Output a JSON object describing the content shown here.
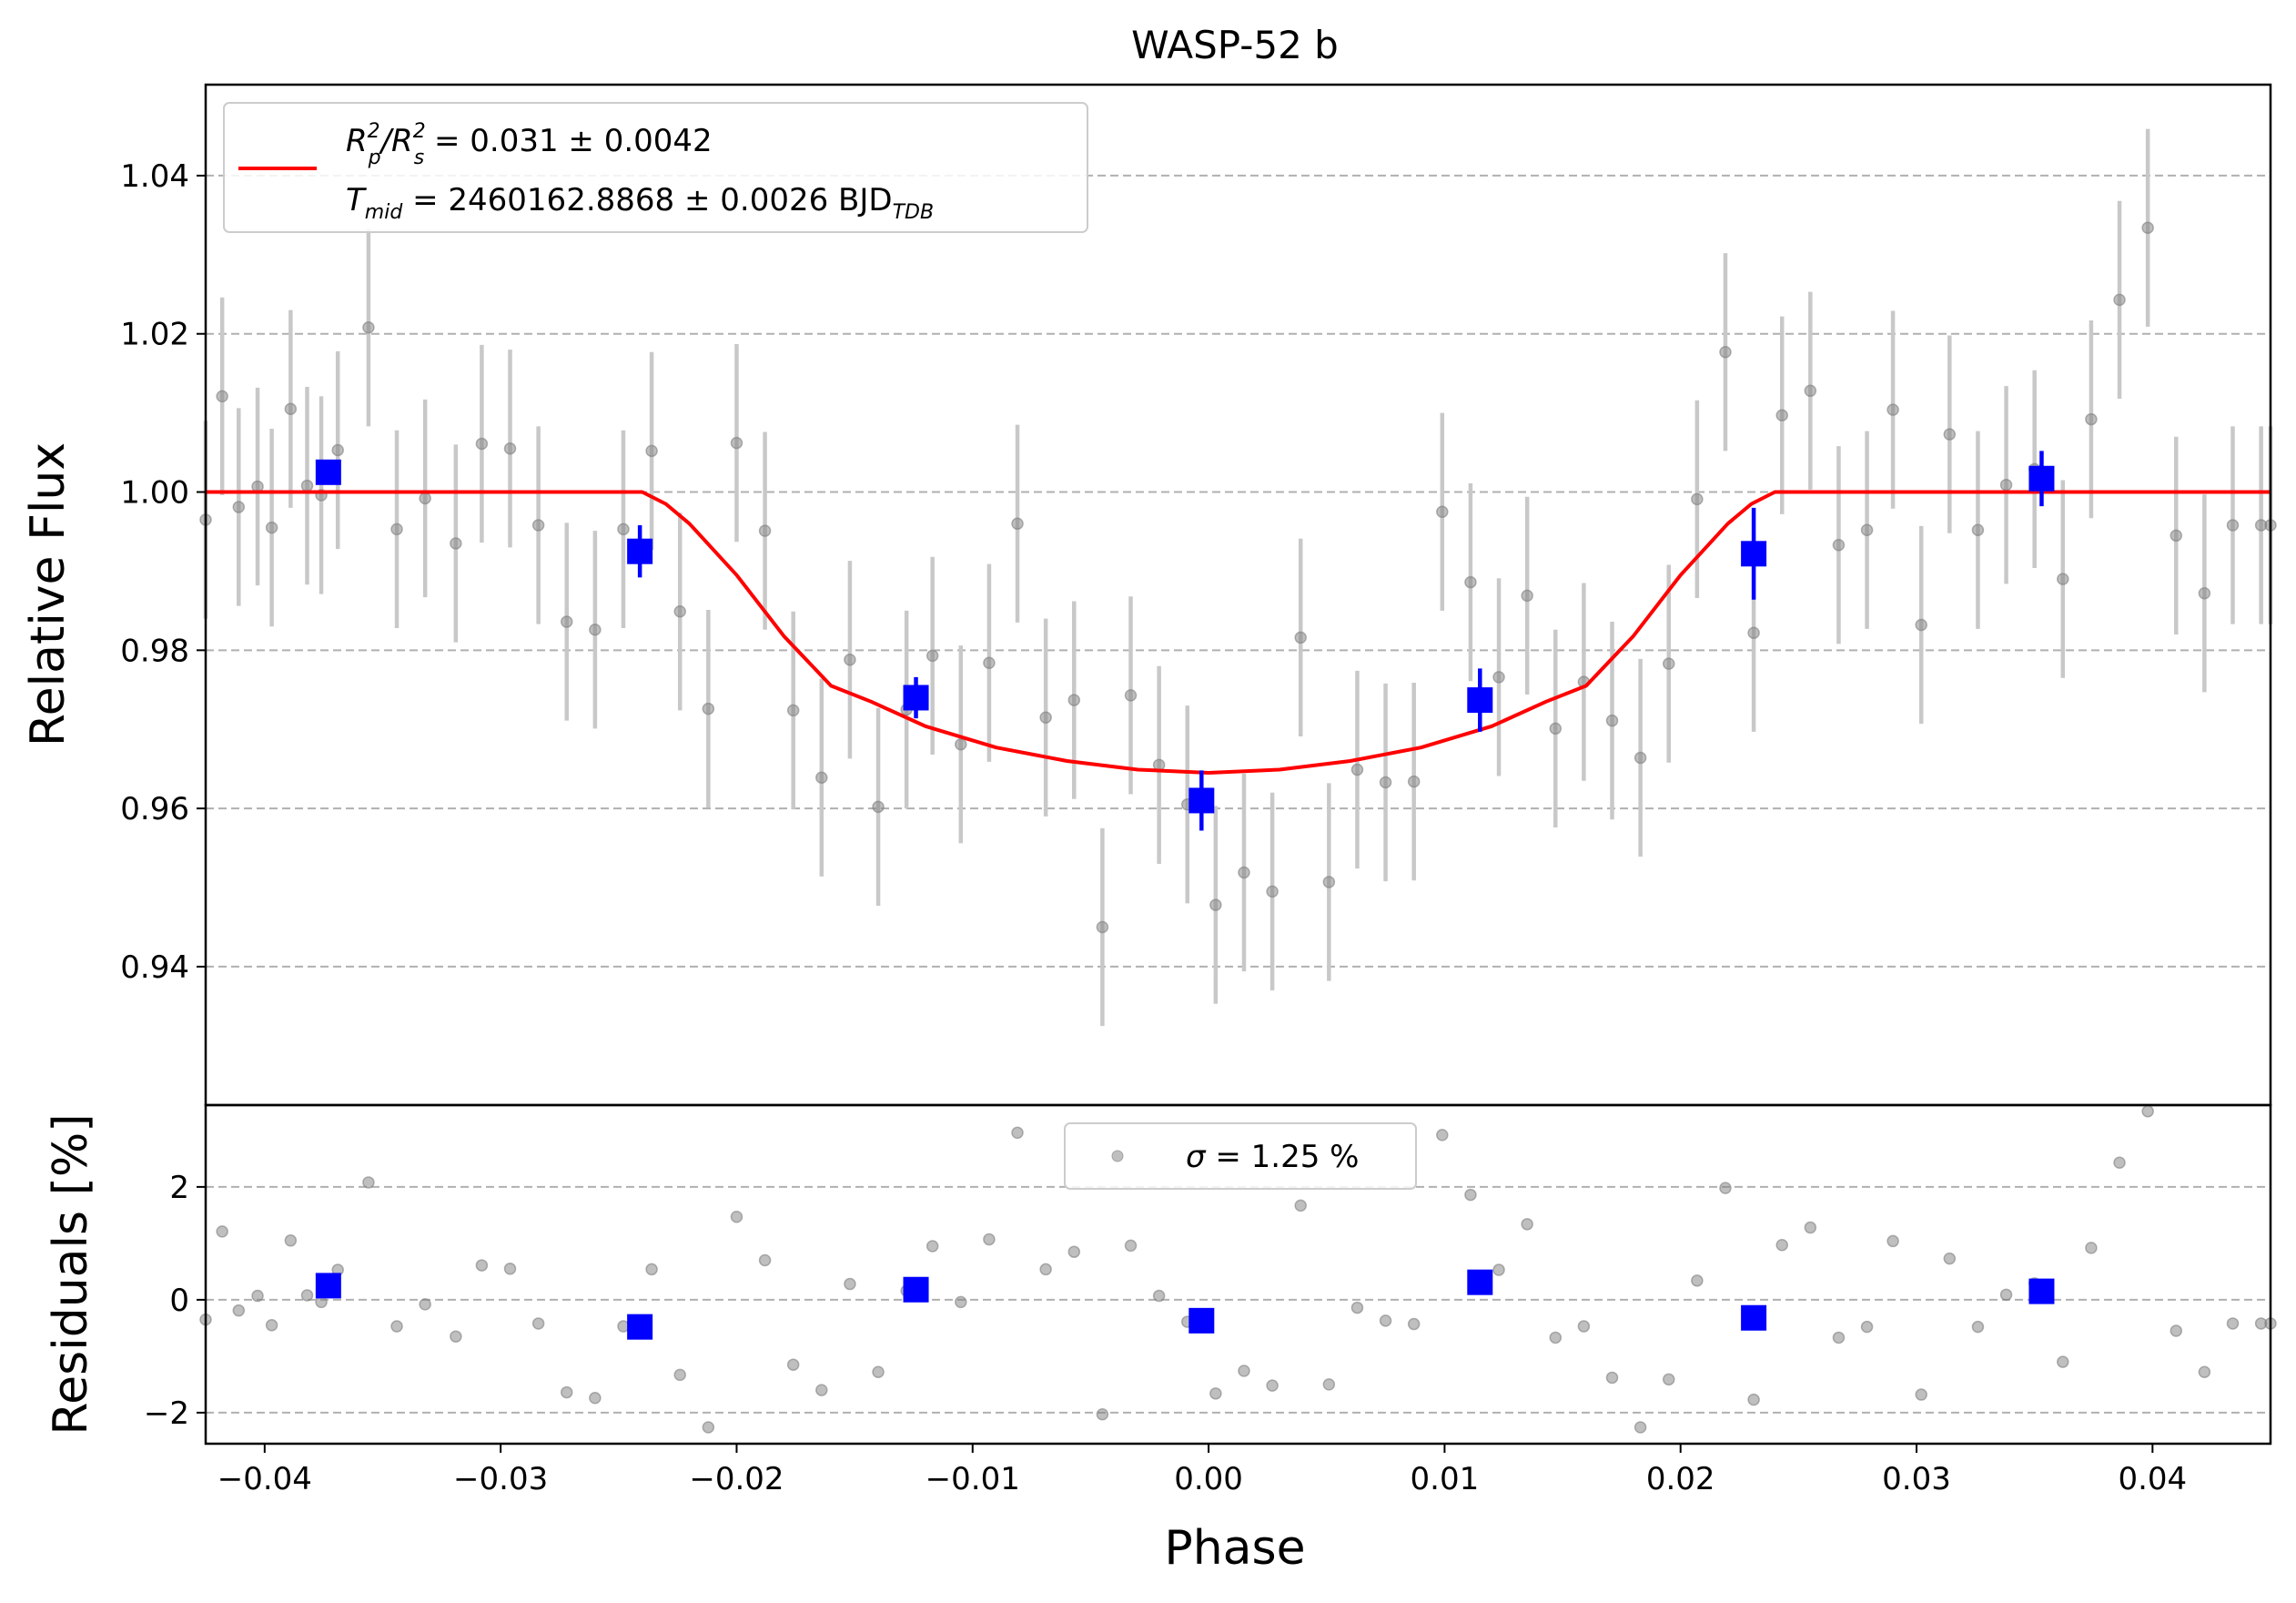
{
  "chart_data": [
    {
      "type": "scatter",
      "panel": "main",
      "title": "WASP-52 b",
      "xlabel": "",
      "ylabel": "Relative Flux",
      "xlim": [
        -0.0425,
        0.045
      ],
      "ylim": [
        0.9225,
        1.0515
      ],
      "grid": "horizontal dashed",
      "yticks": [
        0.94,
        0.96,
        0.98,
        1.0,
        1.02,
        1.04
      ],
      "ytick_labels": [
        "0.94",
        "0.96",
        "0.98",
        "1.00",
        "1.02",
        "1.04"
      ],
      "legend": {
        "location": "upper-left",
        "line1": {
          "pre": "R",
          "sup1": "2",
          "sub1": "p",
          "mid": "/R",
          "sup2": "2",
          "sub2": "s",
          "post": " = 0.031 ± 0.0042"
        },
        "line2": {
          "pre": "T",
          "sub1": "mid",
          "post": " = 2460162.8868 ± 0.0026 BJD",
          "sub2": "TDB"
        }
      },
      "series": [
        {
          "name": "",
          "kind": "data",
          "color": "#808080",
          "error": 0.0125,
          "x": [
            -0.0425,
            -0.0418,
            -0.0411,
            -0.0403,
            -0.0397,
            -0.0389,
            -0.0382,
            -0.0376,
            -0.0369,
            -0.0356,
            -0.0344,
            -0.0332,
            -0.0319,
            -0.0308,
            -0.0296,
            -0.0284,
            -0.0272,
            -0.026,
            -0.0248,
            -0.0236,
            -0.0224,
            -0.0212,
            -0.02,
            -0.0188,
            -0.0176,
            -0.0164,
            -0.0152,
            -0.014,
            -0.0128,
            -0.0117,
            -0.0105,
            -0.0093,
            -0.0081,
            -0.0069,
            -0.0057,
            -0.0045,
            -0.0033,
            -0.0021,
            -0.0009,
            0.0003,
            0.0015,
            0.0027,
            0.0039,
            0.0051,
            0.0063,
            0.0075,
            0.0087,
            0.0099,
            0.0111,
            0.0123,
            0.0135,
            0.0147,
            0.0159,
            0.0171,
            0.0183,
            0.0195,
            0.0207,
            0.0219,
            0.0231,
            0.0243,
            0.0255,
            0.0267,
            0.0279,
            0.029,
            0.0302,
            0.0314,
            0.0326,
            0.0338,
            0.035,
            0.0362,
            0.0374,
            0.0386,
            0.0398,
            0.041,
            0.0422,
            0.0434,
            0.0446,
            0.045
          ],
          "y": [
            0.9965,
            1.0121,
            0.9981,
            1.0007,
            0.9955,
            1.0105,
            1.0008,
            0.9996,
            1.0053,
            1.0208,
            0.9953,
            0.9992,
            0.9935,
            1.0061,
            1.0055,
            0.9958,
            0.9836,
            0.9826,
            0.9953,
            1.0052,
            0.9849,
            0.9726,
            1.0062,
            0.9951,
            0.9724,
            0.9639,
            0.9788,
            0.9602,
            0.9725,
            0.9793,
            0.9681,
            0.9784,
            0.996,
            0.9715,
            0.9737,
            0.945,
            0.9743,
            0.9655,
            0.9605,
            0.9478,
            0.9519,
            0.9495,
            0.9816,
            0.9507,
            0.9649,
            0.9633,
            0.9634,
            0.9975,
            0.9886,
            0.9766,
            0.9869,
            0.9701,
            0.976,
            0.9711,
            0.9664,
            0.9783,
            0.9991,
            1.0177,
            0.9822,
            1.0097,
            1.0128,
            0.9933,
            0.9952,
            1.0104,
            0.9832,
            1.0073,
            0.9952,
            1.0009,
            1.0029,
            0.989,
            1.0092,
            1.0243,
            1.0334,
            0.9945,
            0.9872,
            0.9958,
            0.9958,
            0.9958
          ]
        },
        {
          "name": "",
          "kind": "binned",
          "color": "#0000ff",
          "x": [
            -0.0373,
            -0.0241,
            -0.0124,
            -0.0003,
            0.0115,
            0.0231,
            0.0353
          ],
          "y": [
            1.0025,
            0.9925,
            0.974,
            0.961,
            0.9737,
            0.9922,
            1.0017
          ],
          "yerr": [
            0.0015,
            0.0033,
            0.0026,
            0.0038,
            0.004,
            0.0058,
            0.0035
          ]
        },
        {
          "name": "",
          "kind": "model",
          "color": "#ff0000",
          "x": [
            -0.0425,
            -0.024,
            -0.023,
            -0.022,
            -0.02,
            -0.018,
            -0.016,
            -0.0143,
            -0.012,
            -0.009,
            -0.006,
            -0.003,
            0.0,
            0.003,
            0.006,
            0.009,
            0.012,
            0.0143,
            0.016,
            0.018,
            0.02,
            0.022,
            0.023,
            0.024,
            0.045
          ],
          "y": [
            1.0,
            1.0,
            0.9985,
            0.996,
            0.9895,
            0.9818,
            0.9755,
            0.9735,
            0.9704,
            0.9677,
            0.966,
            0.9649,
            0.9645,
            0.9649,
            0.966,
            0.9677,
            0.9704,
            0.9735,
            0.9755,
            0.9818,
            0.9895,
            0.996,
            0.9985,
            1.0,
            1.0
          ]
        }
      ]
    },
    {
      "type": "scatter",
      "panel": "residuals",
      "xlabel": "Phase",
      "ylabel": "Residuals [%]",
      "xlim": [
        -0.0425,
        0.045
      ],
      "ylim": [
        -2.55,
        3.45
      ],
      "grid": "horizontal dashed",
      "xticks": [
        -0.04,
        -0.03,
        -0.02,
        -0.01,
        0.0,
        0.01,
        0.02,
        0.03,
        0.04
      ],
      "xtick_labels": [
        "−0.04",
        "−0.03",
        "−0.02",
        "−0.01",
        "0.00",
        "0.01",
        "0.02",
        "0.03",
        "0.04"
      ],
      "yticks": [
        -2,
        0,
        2
      ],
      "ytick_labels": [
        "−2",
        "0",
        "2"
      ],
      "legend": {
        "location": "top-center",
        "pre": "σ",
        "post": " = 1.25 %"
      },
      "series": [
        {
          "name": "",
          "kind": "data",
          "color": "#808080",
          "x": [
            -0.0425,
            -0.0418,
            -0.0411,
            -0.0403,
            -0.0397,
            -0.0389,
            -0.0382,
            -0.0376,
            -0.0369,
            -0.0356,
            -0.0344,
            -0.0332,
            -0.0319,
            -0.0308,
            -0.0296,
            -0.0284,
            -0.0272,
            -0.026,
            -0.0248,
            -0.0236,
            -0.0224,
            -0.0212,
            -0.02,
            -0.0188,
            -0.0176,
            -0.0164,
            -0.0152,
            -0.014,
            -0.0128,
            -0.0117,
            -0.0105,
            -0.0093,
            -0.0081,
            -0.0069,
            -0.0057,
            -0.0045,
            -0.0033,
            -0.0021,
            -0.0009,
            0.0003,
            0.0015,
            0.0027,
            0.0039,
            0.0051,
            0.0063,
            0.0075,
            0.0087,
            0.0099,
            0.0111,
            0.0123,
            0.0135,
            0.0147,
            0.0159,
            0.0171,
            0.0183,
            0.0195,
            0.0207,
            0.0219,
            0.0231,
            0.0243,
            0.0255,
            0.0267,
            0.0279,
            0.029,
            0.0302,
            0.0314,
            0.0326,
            0.0338,
            0.035,
            0.0362,
            0.0374,
            0.0386,
            0.0398,
            0.041,
            0.0422,
            0.0434,
            0.0446,
            0.045
          ],
          "y": [
            -0.35,
            1.21,
            -0.19,
            0.07,
            -0.45,
            1.05,
            0.08,
            -0.04,
            0.53,
            2.08,
            -0.47,
            -0.08,
            -0.65,
            0.61,
            0.55,
            -0.42,
            -1.64,
            -1.74,
            -0.47,
            0.54,
            -1.33,
            -2.26,
            1.47,
            0.7,
            -1.15,
            -1.6,
            0.28,
            -1.28,
            0.16,
            0.95,
            -0.04,
            1.07,
            2.96,
            0.54,
            0.85,
            -2.03,
            0.96,
            0.07,
            -0.39,
            -1.66,
            -1.26,
            -1.52,
            1.67,
            -1.5,
            -0.14,
            -0.37,
            -0.43,
            2.92,
            1.86,
            0.53,
            1.34,
            -0.67,
            -0.47,
            -1.38,
            -2.26,
            -1.41,
            0.34,
            1.98,
            -1.77,
            0.97,
            1.28,
            -0.67,
            -0.48,
            1.04,
            -1.68,
            0.73,
            -0.48,
            0.09,
            0.29,
            -1.1,
            0.92,
            2.43,
            3.34,
            -0.55,
            -1.28,
            -0.42,
            -0.42,
            -0.42
          ]
        },
        {
          "name": "",
          "kind": "binned",
          "color": "#0000ff",
          "x": [
            -0.0373,
            -0.0241,
            -0.0124,
            -0.0003,
            0.0115,
            0.0231,
            0.0353
          ],
          "y": [
            0.25,
            -0.48,
            0.18,
            -0.37,
            0.31,
            -0.32,
            0.15
          ]
        }
      ]
    }
  ]
}
